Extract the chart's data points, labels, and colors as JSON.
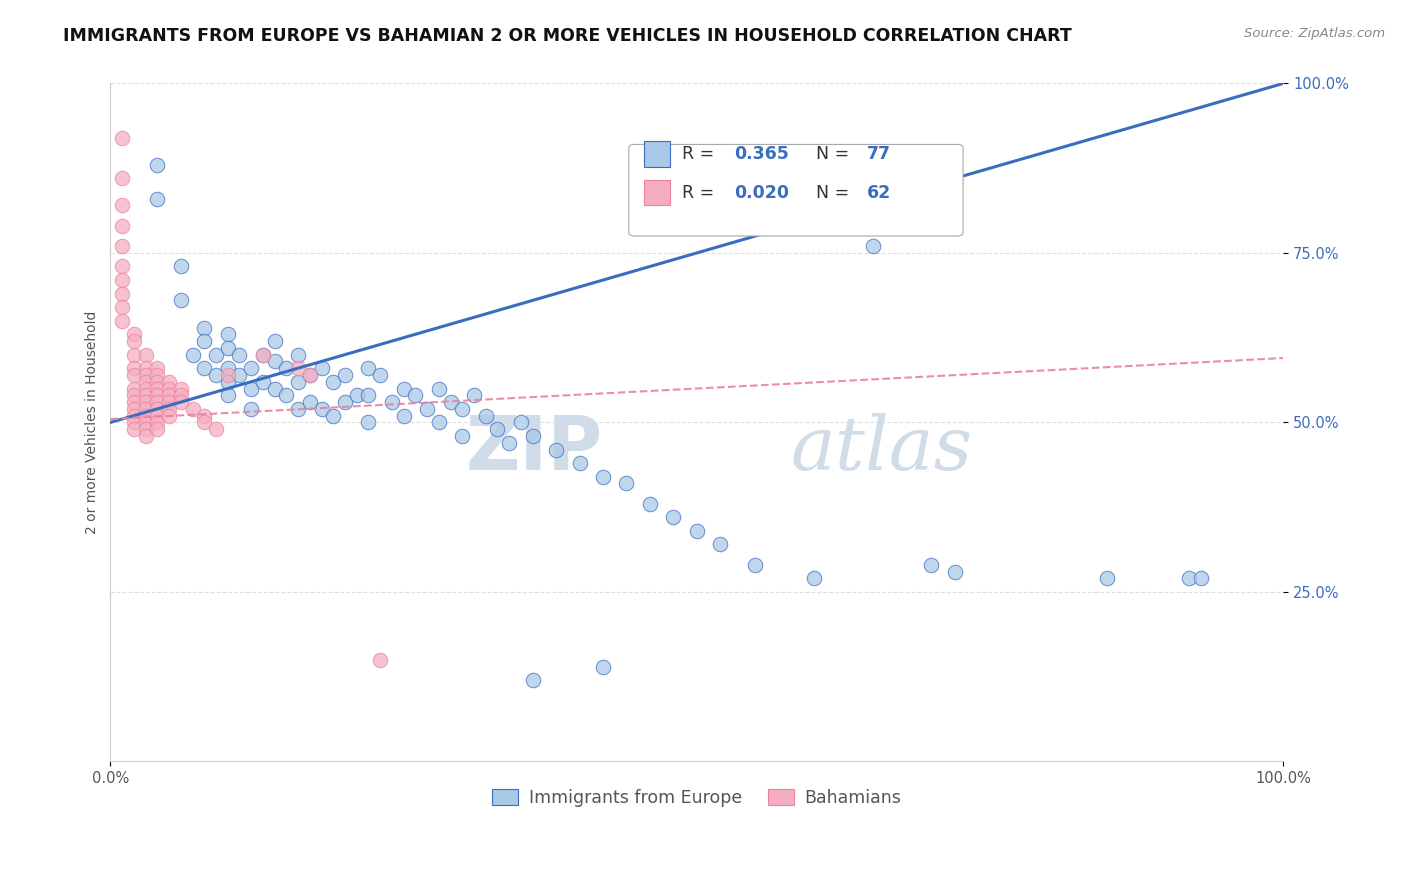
{
  "title": "IMMIGRANTS FROM EUROPE VS BAHAMIAN 2 OR MORE VEHICLES IN HOUSEHOLD CORRELATION CHART",
  "source": "Source: ZipAtlas.com",
  "ylabel": "2 or more Vehicles in Household",
  "xlim": [
    0,
    1.0
  ],
  "ylim": [
    0,
    1.0
  ],
  "legend_blue_r": "0.365",
  "legend_blue_n": "77",
  "legend_pink_r": "0.020",
  "legend_pink_n": "62",
  "legend_blue_label": "Immigrants from Europe",
  "legend_pink_label": "Bahamians",
  "blue_color": "#aac9e8",
  "pink_color": "#f5aec0",
  "blue_line_color": "#3b6dbf",
  "pink_line_color": "#e8829e",
  "watermark_zip": "ZIP",
  "watermark_atlas": "atlas",
  "blue_scatter_x": [
    0.04,
    0.04,
    0.06,
    0.06,
    0.07,
    0.08,
    0.08,
    0.08,
    0.09,
    0.09,
    0.1,
    0.1,
    0.1,
    0.1,
    0.1,
    0.11,
    0.11,
    0.12,
    0.12,
    0.12,
    0.13,
    0.13,
    0.14,
    0.14,
    0.14,
    0.15,
    0.15,
    0.16,
    0.16,
    0.16,
    0.17,
    0.17,
    0.18,
    0.18,
    0.19,
    0.19,
    0.2,
    0.2,
    0.21,
    0.22,
    0.22,
    0.22,
    0.23,
    0.24,
    0.25,
    0.25,
    0.26,
    0.27,
    0.28,
    0.28,
    0.29,
    0.3,
    0.3,
    0.31,
    0.32,
    0.33,
    0.34,
    0.35,
    0.36,
    0.38,
    0.4,
    0.42,
    0.44,
    0.46,
    0.48,
    0.5,
    0.52,
    0.55,
    0.6,
    0.65,
    0.7,
    0.72,
    0.85,
    0.92,
    0.93,
    0.36,
    0.42
  ],
  "blue_scatter_y": [
    0.88,
    0.83,
    0.73,
    0.68,
    0.6,
    0.64,
    0.62,
    0.58,
    0.6,
    0.57,
    0.63,
    0.61,
    0.58,
    0.56,
    0.54,
    0.6,
    0.57,
    0.58,
    0.55,
    0.52,
    0.6,
    0.56,
    0.62,
    0.59,
    0.55,
    0.58,
    0.54,
    0.6,
    0.56,
    0.52,
    0.57,
    0.53,
    0.58,
    0.52,
    0.56,
    0.51,
    0.57,
    0.53,
    0.54,
    0.58,
    0.54,
    0.5,
    0.57,
    0.53,
    0.55,
    0.51,
    0.54,
    0.52,
    0.55,
    0.5,
    0.53,
    0.52,
    0.48,
    0.54,
    0.51,
    0.49,
    0.47,
    0.5,
    0.48,
    0.46,
    0.44,
    0.42,
    0.41,
    0.38,
    0.36,
    0.34,
    0.32,
    0.29,
    0.27,
    0.76,
    0.29,
    0.28,
    0.27,
    0.27,
    0.27,
    0.12,
    0.14
  ],
  "pink_scatter_x": [
    0.01,
    0.01,
    0.01,
    0.01,
    0.01,
    0.01,
    0.01,
    0.01,
    0.01,
    0.01,
    0.02,
    0.02,
    0.02,
    0.02,
    0.02,
    0.02,
    0.02,
    0.02,
    0.02,
    0.02,
    0.02,
    0.02,
    0.03,
    0.03,
    0.03,
    0.03,
    0.03,
    0.03,
    0.03,
    0.03,
    0.03,
    0.03,
    0.03,
    0.03,
    0.04,
    0.04,
    0.04,
    0.04,
    0.04,
    0.04,
    0.04,
    0.04,
    0.04,
    0.04,
    0.05,
    0.05,
    0.05,
    0.05,
    0.05,
    0.05,
    0.06,
    0.06,
    0.06,
    0.07,
    0.08,
    0.08,
    0.09,
    0.1,
    0.13,
    0.16,
    0.17,
    0.23
  ],
  "pink_scatter_y": [
    0.92,
    0.86,
    0.82,
    0.79,
    0.76,
    0.73,
    0.71,
    0.69,
    0.67,
    0.65,
    0.63,
    0.62,
    0.6,
    0.58,
    0.57,
    0.55,
    0.54,
    0.53,
    0.52,
    0.51,
    0.5,
    0.49,
    0.6,
    0.58,
    0.57,
    0.56,
    0.55,
    0.54,
    0.53,
    0.52,
    0.51,
    0.5,
    0.49,
    0.48,
    0.58,
    0.57,
    0.56,
    0.55,
    0.54,
    0.53,
    0.52,
    0.51,
    0.5,
    0.49,
    0.56,
    0.55,
    0.54,
    0.53,
    0.52,
    0.51,
    0.55,
    0.54,
    0.53,
    0.52,
    0.51,
    0.5,
    0.49,
    0.57,
    0.6,
    0.58,
    0.57,
    0.15
  ],
  "blue_line_x": [
    0.0,
    1.0
  ],
  "blue_line_y": [
    0.5,
    1.0
  ],
  "pink_line_x": [
    0.0,
    1.0
  ],
  "pink_line_y": [
    0.505,
    0.595
  ],
  "grid_color": "#e0e0e0",
  "background_color": "#ffffff",
  "title_fontsize": 12.5,
  "axis_label_fontsize": 10,
  "tick_fontsize": 10.5,
  "legend_fontsize": 12.5,
  "watermark_fontsize_zip": 54,
  "watermark_fontsize_atlas": 54,
  "watermark_color": "#d0dce8",
  "accent_color": "#3b6dbf"
}
